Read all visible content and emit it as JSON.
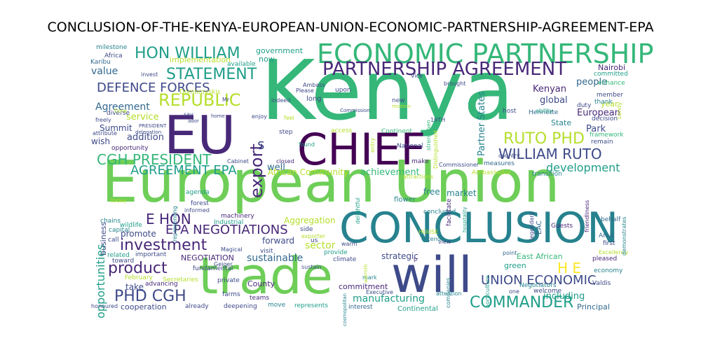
{
  "title": "CONCLUSION-OF-THE-KENYA-EUROPEAN-UNION-ECONOMIC-PARTNERSHIP-AGREEMENT-EPA",
  "palette": {
    "dark_purple": "#482878",
    "indigo": "#3e4a89",
    "blue": "#31688e",
    "teal": "#26828e",
    "green_teal": "#1f9e89",
    "green": "#35b779",
    "light_green": "#6ece58",
    "lime": "#b5de2b",
    "yellow": "#fde725",
    "deep_purple": "#440154"
  },
  "words": [
    {
      "text": "Kenya"
    },
    {
      "text": "European Union"
    },
    {
      "text": "trade"
    },
    {
      "text": "CONCLUSION"
    },
    {
      "text": "EU"
    },
    {
      "text": "CHIEF"
    },
    {
      "text": "will"
    },
    {
      "text": "ECONOMIC PARTNERSHIP"
    },
    {
      "text": "PARTNERSHIP AGREEMENT"
    },
    {
      "text": "HON WILLIAM"
    },
    {
      "text": "STATEMENT"
    },
    {
      "text": "REPUBLIC"
    },
    {
      "text": "DEFENCE FORCES"
    },
    {
      "text": "export"
    },
    {
      "text": "CGH PRESIDENT"
    },
    {
      "text": "AGREEMENT EPA"
    },
    {
      "text": "RUTO PHD"
    },
    {
      "text": "WILLIAM RUTO"
    },
    {
      "text": "development"
    },
    {
      "text": "investment"
    },
    {
      "text": "product"
    },
    {
      "text": "E HON"
    },
    {
      "text": "EPA NEGOTIATIONS"
    },
    {
      "text": "PHD CGH"
    },
    {
      "text": "H E"
    },
    {
      "text": "UNION ECONOMIC"
    },
    {
      "text": "COMMANDER"
    },
    {
      "text": "opportunities"
    },
    {
      "text": "sustainable"
    },
    {
      "text": "sector"
    },
    {
      "text": "value"
    },
    {
      "text": "Agreement"
    },
    {
      "text": "service"
    },
    {
      "text": "addition"
    },
    {
      "text": "Summit"
    },
    {
      "text": "wish"
    },
    {
      "text": "government"
    },
    {
      "text": "now"
    },
    {
      "text": "implementation"
    },
    {
      "text": "available"
    },
    {
      "text": "Kenyan"
    },
    {
      "text": "global"
    },
    {
      "text": "people"
    },
    {
      "text": "European"
    },
    {
      "text": "State"
    },
    {
      "text": "Park"
    },
    {
      "text": "year"
    },
    {
      "text": "Partner States"
    },
    {
      "text": "market"
    },
    {
      "text": "free"
    },
    {
      "text": "achievement"
    },
    {
      "text": "well"
    },
    {
      "text": "African Community"
    },
    {
      "text": "s"
    },
    {
      "text": "Aggregation"
    },
    {
      "text": "forward"
    },
    {
      "text": "manufacturing"
    },
    {
      "text": "strategic"
    },
    {
      "text": "including"
    },
    {
      "text": "green"
    },
    {
      "text": "East African"
    },
    {
      "text": "Negotiators"
    },
    {
      "text": "business"
    },
    {
      "text": "promote"
    },
    {
      "text": "take"
    },
    {
      "text": "cooperation"
    },
    {
      "text": "advancing"
    },
    {
      "text": "NEGOTIATION"
    },
    {
      "text": "County"
    },
    {
      "text": "teams"
    },
    {
      "text": "commitment"
    },
    {
      "text": "Continental"
    },
    {
      "text": "Principal"
    },
    {
      "text": "economy"
    },
    {
      "text": "Valdis"
    },
    {
      "text": "milestone"
    },
    {
      "text": "Africa"
    },
    {
      "text": "Karibu"
    },
    {
      "text": "Nairobi"
    },
    {
      "text": "committed"
    },
    {
      "text": "Dombrovskis"
    },
    {
      "text": "enhance"
    },
    {
      "text": "member"
    },
    {
      "text": "thank"
    },
    {
      "text": "Henriette"
    },
    {
      "text": "ability"
    },
    {
      "text": "decision"
    },
    {
      "text": "framework"
    },
    {
      "text": "remain"
    },
    {
      "text": "transition"
    },
    {
      "text": "Ambassador"
    },
    {
      "text": "measures"
    },
    {
      "text": "opportunity"
    },
    {
      "text": "agenda"
    },
    {
      "text": "forest"
    },
    {
      "text": "informed"
    },
    {
      "text": "machinery"
    },
    {
      "text": "Industrial"
    },
    {
      "text": "wildlife"
    },
    {
      "text": "capital"
    },
    {
      "text": "related"
    },
    {
      "text": "important"
    },
    {
      "text": "toward"
    },
    {
      "text": "February"
    },
    {
      "text": "Secretaries"
    },
    {
      "text": "private"
    },
    {
      "text": "farms"
    },
    {
      "text": "deepening"
    },
    {
      "text": "move"
    },
    {
      "text": "represents"
    },
    {
      "text": "interest"
    },
    {
      "text": "attention"
    },
    {
      "text": "welcome"
    },
    {
      "text": "pleased"
    },
    {
      "text": "first"
    },
    {
      "text": "Area"
    },
    {
      "text": "behalf"
    },
    {
      "text": "Guests"
    },
    {
      "text": "Excellency"
    },
    {
      "text": "already"
    },
    {
      "text": "honoured"
    },
    {
      "text": "Geiger"
    },
    {
      "text": "fundamental"
    },
    {
      "text": "sustain"
    },
    {
      "text": "Executive"
    },
    {
      "text": "mark"
    },
    {
      "text": "climate"
    },
    {
      "text": "provide"
    },
    {
      "text": "visit"
    },
    {
      "text": "side"
    },
    {
      "text": "Magical"
    },
    {
      "text": "us"
    },
    {
      "text": "warm"
    },
    {
      "text": "flower"
    },
    {
      "text": "concluded"
    },
    {
      "text": "delightful"
    },
    {
      "text": "extend"
    },
    {
      "text": "HOUSE"
    },
    {
      "text": "view"
    },
    {
      "text": "point"
    },
    {
      "text": "today"
    },
    {
      "text": "Cabinet"
    },
    {
      "text": "closed"
    },
    {
      "text": "make"
    },
    {
      "text": "found"
    },
    {
      "text": "feel"
    },
    {
      "text": "access"
    },
    {
      "text": "Continent"
    },
    {
      "text": "step"
    },
    {
      "text": "National"
    },
    {
      "text": "Commission"
    },
    {
      "text": "upon"
    },
    {
      "text": "Ambass"
    },
    {
      "text": "Please"
    },
    {
      "text": "long"
    },
    {
      "text": "indeed"
    },
    {
      "text": "enjoy"
    },
    {
      "text": "Mr"
    },
    {
      "text": "home"
    },
    {
      "text": "say"
    },
    {
      "text": "PRESIDENT"
    },
    {
      "text": "delegation"
    },
    {
      "text": "attribute"
    },
    {
      "text": "freely"
    },
    {
      "text": "diverse"
    },
    {
      "text": "time"
    },
    {
      "text": "invest"
    },
    {
      "text": "brought"
    },
    {
      "text": "modern"
    },
    {
      "text": "new"
    },
    {
      "text": "Vice"
    },
    {
      "text": "host"
    },
    {
      "text": "19TH"
    },
    {
      "text": "duty"
    },
    {
      "text": "Distinguished"
    },
    {
      "text": "strengthen"
    },
    {
      "text": "EAC"
    },
    {
      "text": "Commissioner"
    },
    {
      "text": "country"
    },
    {
      "text": "attractions"
    },
    {
      "text": "legendary"
    },
    {
      "text": "facilitate"
    },
    {
      "text": "hospitality"
    },
    {
      "text": "friendliness"
    },
    {
      "text": "demonstrates"
    },
    {
      "text": "cosmopolitan"
    },
    {
      "text": "horticulture"
    },
    {
      "text": "companies"
    },
    {
      "text": "warmth"
    },
    {
      "text": "one"
    },
    {
      "text": "chains"
    },
    {
      "text": "call"
    },
    {
      "text": "exporter"
    },
    {
      "text": "representing"
    },
    {
      "text": "entry"
    },
    {
      "text": "Landy"
    },
    {
      "text": "p"
    },
    {
      "text": "ador"
    }
  ]
}
